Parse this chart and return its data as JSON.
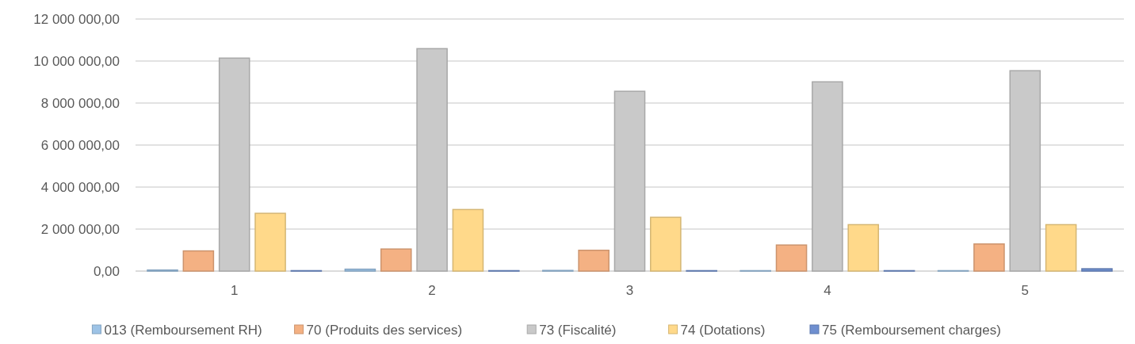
{
  "chart_data": {
    "type": "bar",
    "categories": [
      "1",
      "2",
      "3",
      "4",
      "5"
    ],
    "series": [
      {
        "name": "013 (Remboursement RH)",
        "color": "#9dc3e6",
        "values": [
          50000,
          90000,
          30000,
          20000,
          20000
        ]
      },
      {
        "name": "70 (Produits des services)",
        "color": "#f4b183",
        "values": [
          960000,
          1050000,
          990000,
          1240000,
          1290000
        ]
      },
      {
        "name": "73 (Fiscalité)",
        "color": "#c9c9c9",
        "values": [
          10140000,
          10590000,
          8560000,
          9010000,
          9540000
        ]
      },
      {
        "name": "74 (Dotations)",
        "color": "#ffd98a",
        "values": [
          2750000,
          2930000,
          2560000,
          2210000,
          2210000
        ]
      },
      {
        "name": "75 (Remboursement charges)",
        "color": "#6f8fd0",
        "values": [
          20000,
          20000,
          20000,
          20000,
          110000
        ]
      }
    ],
    "ylim": [
      0,
      12000000
    ],
    "yticks": [
      {
        "value": 0,
        "label": "0,00"
      },
      {
        "value": 2000000,
        "label": "2 000 000,00"
      },
      {
        "value": 4000000,
        "label": "4 000 000,00"
      },
      {
        "value": 6000000,
        "label": "6 000 000,00"
      },
      {
        "value": 8000000,
        "label": "8 000 000,00"
      },
      {
        "value": 10000000,
        "label": "10 000 000,00"
      },
      {
        "value": 12000000,
        "label": "12 000 000,00"
      }
    ],
    "grid": "y",
    "legend": "bottom"
  }
}
